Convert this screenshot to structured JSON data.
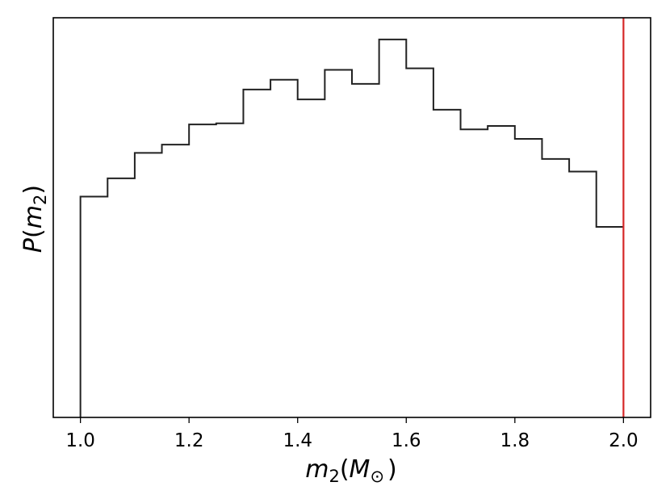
{
  "chart_data": {
    "type": "histogram",
    "xlabel": {
      "main": "m",
      "sub": "2",
      "open": "(",
      "var": "M",
      "sym": "⊙",
      "close": ")"
    },
    "ylabel": {
      "main": "P",
      "open": "(",
      "var": "m",
      "sub": "2",
      "close": ")"
    },
    "xlim": [
      0.95,
      2.05
    ],
    "ylim": [
      0,
      1.0
    ],
    "xticks": [
      1.0,
      1.2,
      1.4,
      1.6,
      1.8,
      2.0
    ],
    "xtick_labels": [
      "1.0",
      "1.2",
      "1.4",
      "1.6",
      "1.8",
      "2.0"
    ],
    "show_yticks": false,
    "grid": false,
    "bin_edges": [
      1.0,
      1.05,
      1.1,
      1.15,
      1.2,
      1.25,
      1.3,
      1.35,
      1.4,
      1.45,
      1.5,
      1.55,
      1.6,
      1.65,
      1.7,
      1.75,
      1.8,
      1.85,
      1.9,
      1.95,
      2.0
    ],
    "counts": [
      0.582,
      0.63,
      0.697,
      0.719,
      0.772,
      0.775,
      0.864,
      0.89,
      0.838,
      0.916,
      0.879,
      0.996,
      0.92,
      0.811,
      0.759,
      0.768,
      0.734,
      0.681,
      0.648,
      0.502
    ],
    "line_color": "#222222",
    "vline": {
      "x": 2.0,
      "color": "#d62728"
    }
  }
}
